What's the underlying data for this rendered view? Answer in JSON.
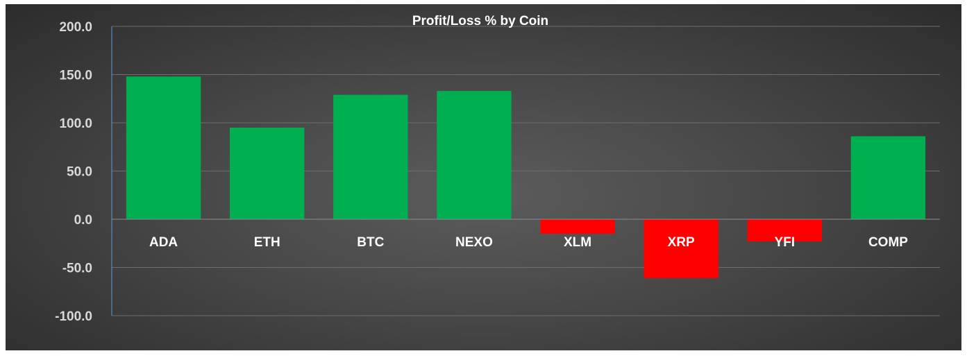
{
  "chart_data": {
    "type": "bar",
    "title": "Profit/Loss % by Coin",
    "xlabel": "",
    "ylabel": "",
    "categories": [
      "ADA",
      "ETH",
      "BTC",
      "NEXO",
      "XLM",
      "XRP",
      "YFI",
      "COMP"
    ],
    "values": [
      148,
      95,
      129,
      133,
      -15,
      -61,
      -23,
      86
    ],
    "ylim": [
      -100,
      200
    ],
    "ytick_values": [
      200,
      150,
      100,
      50,
      0,
      -50,
      -100
    ],
    "ytick_labels": [
      "200.0",
      "150.0",
      "100.0",
      "50.0",
      "0.0",
      "-50.0",
      "-100.0"
    ],
    "grid": true,
    "legend": "none",
    "colors": {
      "positive": "#00b050",
      "negative": "#ff0000"
    }
  }
}
